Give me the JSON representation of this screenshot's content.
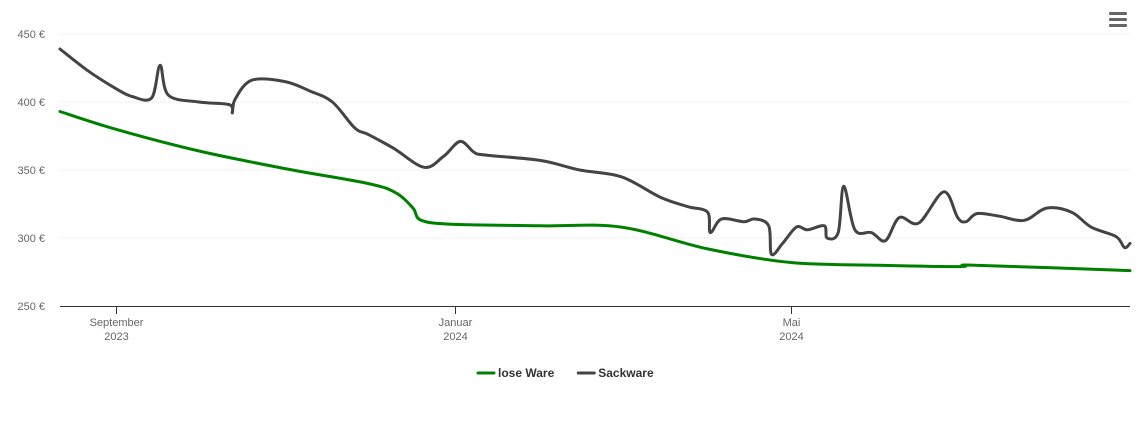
{
  "menu": {
    "icon": "hamburger-menu-icon"
  },
  "chart_data": {
    "type": "line",
    "y_unit": "€",
    "ylim": [
      250,
      450
    ],
    "y_ticks": [
      250,
      300,
      350,
      400,
      450
    ],
    "y_tick_labels": [
      "250 €",
      "300 €",
      "350 €",
      "400 €",
      "450 €"
    ],
    "xlim": [
      "2023-08-12",
      "2024-08-31"
    ],
    "x_ticks": [
      {
        "date": "2023-09-01",
        "label_line1": "September",
        "label_line2": "2023"
      },
      {
        "date": "2024-01-01",
        "label_line1": "Januar",
        "label_line2": "2024"
      },
      {
        "date": "2024-05-01",
        "label_line1": "Mai",
        "label_line2": "2024"
      }
    ],
    "grid": "horizontal",
    "legend_position": "bottom-center",
    "series": [
      {
        "name": "lose Ware",
        "color": "#008000",
        "points": [
          [
            "2023-08-12",
            393
          ],
          [
            "2023-09-01",
            380
          ],
          [
            "2023-10-01",
            364
          ],
          [
            "2023-11-01",
            351
          ],
          [
            "2023-12-01",
            340
          ],
          [
            "2023-12-11",
            333
          ],
          [
            "2023-12-17",
            322
          ],
          [
            "2023-12-20",
            313
          ],
          [
            "2024-01-01",
            310
          ],
          [
            "2024-02-01",
            309
          ],
          [
            "2024-03-01",
            308
          ],
          [
            "2024-04-01",
            292
          ],
          [
            "2024-05-01",
            282
          ],
          [
            "2024-06-01",
            280
          ],
          [
            "2024-07-01",
            279
          ],
          [
            "2024-07-06",
            280
          ],
          [
            "2024-08-31",
            276
          ]
        ]
      },
      {
        "name": "Sackware",
        "color": "#444444",
        "points": [
          [
            "2023-08-12",
            439
          ],
          [
            "2023-08-22",
            423
          ],
          [
            "2023-09-01",
            410
          ],
          [
            "2023-09-07",
            404
          ],
          [
            "2023-09-14",
            403
          ],
          [
            "2023-09-17",
            427
          ],
          [
            "2023-09-20",
            405
          ],
          [
            "2023-10-01",
            400
          ],
          [
            "2023-10-12",
            398
          ],
          [
            "2023-10-13",
            392
          ],
          [
            "2023-10-14",
            402
          ],
          [
            "2023-10-20",
            416
          ],
          [
            "2023-11-01",
            415
          ],
          [
            "2023-11-10",
            408
          ],
          [
            "2023-11-18",
            400
          ],
          [
            "2023-11-26",
            381
          ],
          [
            "2023-12-01",
            376
          ],
          [
            "2023-12-10",
            366
          ],
          [
            "2023-12-21",
            352
          ],
          [
            "2023-12-28",
            360
          ],
          [
            "2024-01-03",
            371
          ],
          [
            "2024-01-08",
            363
          ],
          [
            "2024-01-12",
            361
          ],
          [
            "2024-02-01",
            357
          ],
          [
            "2024-02-15",
            350
          ],
          [
            "2024-03-01",
            345
          ],
          [
            "2024-03-15",
            330
          ],
          [
            "2024-03-25",
            323
          ],
          [
            "2024-04-01",
            319
          ],
          [
            "2024-04-02",
            304
          ],
          [
            "2024-04-06",
            314
          ],
          [
            "2024-04-14",
            312
          ],
          [
            "2024-04-18",
            314
          ],
          [
            "2024-04-23",
            309
          ],
          [
            "2024-04-24",
            288
          ],
          [
            "2024-04-28",
            296
          ],
          [
            "2024-05-03",
            308
          ],
          [
            "2024-05-07",
            306
          ],
          [
            "2024-05-13",
            309
          ],
          [
            "2024-05-14",
            300
          ],
          [
            "2024-05-18",
            304
          ],
          [
            "2024-05-20",
            338
          ],
          [
            "2024-05-24",
            306
          ],
          [
            "2024-05-30",
            304
          ],
          [
            "2024-06-04",
            298
          ],
          [
            "2024-06-09",
            315
          ],
          [
            "2024-06-16",
            311
          ],
          [
            "2024-06-25",
            334
          ],
          [
            "2024-06-30",
            315
          ],
          [
            "2024-07-03",
            312
          ],
          [
            "2024-07-07",
            318
          ],
          [
            "2024-07-15",
            316
          ],
          [
            "2024-07-24",
            313
          ],
          [
            "2024-08-01",
            322
          ],
          [
            "2024-08-10",
            319
          ],
          [
            "2024-08-17",
            308
          ],
          [
            "2024-08-26",
            301
          ],
          [
            "2024-08-29",
            293
          ],
          [
            "2024-08-31",
            296
          ]
        ]
      }
    ]
  }
}
